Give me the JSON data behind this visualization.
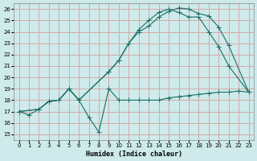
{
  "xlabel": "Humidex (Indice chaleur)",
  "bg_color": "#ceeaea",
  "grid_color": "#d4a8a8",
  "line_color": "#1a6e65",
  "xlim": [
    -0.5,
    23.5
  ],
  "ylim": [
    14.5,
    26.5
  ],
  "xticks": [
    0,
    1,
    2,
    3,
    4,
    5,
    6,
    7,
    8,
    9,
    10,
    11,
    12,
    13,
    14,
    15,
    16,
    17,
    18,
    19,
    20,
    21,
    22,
    23
  ],
  "yticks": [
    15,
    16,
    17,
    18,
    19,
    20,
    21,
    22,
    23,
    24,
    25,
    26
  ],
  "line1_x": [
    0,
    1,
    2,
    3,
    4,
    5,
    6,
    7,
    8,
    9,
    10,
    11,
    12,
    13,
    14,
    15,
    16,
    17,
    18,
    19,
    20,
    21,
    22,
    23
  ],
  "line1_y": [
    17.0,
    16.7,
    17.2,
    17.9,
    18.0,
    19.0,
    18.0,
    16.5,
    15.2,
    19.0,
    18.0,
    18.0,
    18.0,
    18.0,
    18.0,
    18.2,
    18.3,
    18.4,
    18.5,
    18.6,
    18.7,
    18.7,
    18.8,
    18.7
  ],
  "line2_x": [
    0,
    2,
    3,
    4,
    5,
    6,
    9,
    10,
    11,
    12,
    13,
    14,
    15,
    16,
    17,
    18,
    19,
    20,
    21,
    23
  ],
  "line2_y": [
    17.0,
    17.2,
    17.9,
    18.0,
    19.0,
    18.0,
    20.5,
    21.5,
    23.0,
    24.2,
    25.0,
    25.7,
    26.0,
    25.7,
    25.3,
    25.3,
    24.0,
    22.7,
    21.0,
    18.7
  ],
  "line3_x": [
    0,
    2,
    3,
    4,
    5,
    6,
    9,
    10,
    11,
    12,
    13,
    14,
    15,
    16,
    17,
    18,
    19,
    20,
    21,
    23
  ],
  "line3_y": [
    17.0,
    17.2,
    17.9,
    18.0,
    19.0,
    18.0,
    20.5,
    21.5,
    23.0,
    24.0,
    24.5,
    25.3,
    25.8,
    26.1,
    26.0,
    25.6,
    25.4,
    24.4,
    22.8,
    18.7
  ]
}
